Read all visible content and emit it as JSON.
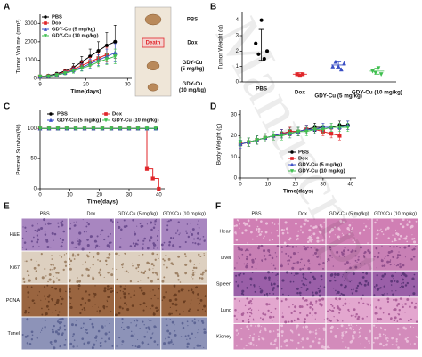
{
  "panel_labels": [
    "A",
    "B",
    "C",
    "D",
    "E",
    "F"
  ],
  "chart_data": [
    {
      "type": "line",
      "ylabel": "Tumor Volume (mm³)",
      "xlabel": "Time(days)",
      "x": [
        9,
        11,
        13,
        15,
        17,
        19,
        21,
        23,
        25,
        27
      ],
      "xlim": [
        9,
        31
      ],
      "xticks": [
        9,
        20,
        30
      ],
      "ylim": [
        0,
        3500
      ],
      "yticks": [
        0,
        1000,
        2000,
        3000
      ],
      "legend": "upper left",
      "series": [
        {
          "name": "PBS",
          "color": "#000000",
          "marker": "circle",
          "values": [
            100,
            150,
            250,
            400,
            600,
            900,
            1200,
            1500,
            1800,
            2000
          ],
          "errors": [
            30,
            50,
            80,
            120,
            200,
            300,
            400,
            500,
            700,
            900
          ]
        },
        {
          "name": "Dox",
          "color": "#e0262a",
          "marker": "square",
          "values": [
            100,
            130,
            200,
            350,
            500,
            700,
            900,
            1100,
            1300,
            null
          ],
          "errors": [
            30,
            40,
            60,
            100,
            150,
            200,
            250,
            300,
            400,
            null
          ]
        },
        {
          "name": "GDY-Cu (5 mg/kg)",
          "color": "#3a4fc4",
          "marker": "triangle",
          "values": [
            100,
            120,
            200,
            300,
            450,
            600,
            800,
            1000,
            1200,
            1400
          ],
          "errors": [
            30,
            40,
            60,
            90,
            130,
            180,
            250,
            300,
            400,
            500
          ]
        },
        {
          "name": "GDY-Cu (10 mg/kg)",
          "color": "#3fbf4f",
          "marker": "triangle-down",
          "values": [
            100,
            110,
            180,
            280,
            400,
            550,
            700,
            900,
            1050,
            1200
          ],
          "errors": [
            30,
            40,
            60,
            90,
            120,
            160,
            200,
            260,
            300,
            400
          ]
        }
      ]
    },
    {
      "type": "dot",
      "ylabel": "Tumor Weight (g)",
      "categories": [
        "PBS",
        "Dox",
        "GDY-Cu (5 mg/kg)",
        "GDY-Cu (10 mg/kg)"
      ],
      "colors": [
        "#000000",
        "#e0262a",
        "#3a4fc4",
        "#3fbf4f"
      ],
      "markers": [
        "circle",
        "square",
        "triangle",
        "triangle-down"
      ],
      "points": [
        [
          2.5,
          1.8,
          4.0,
          1.5,
          2.0
        ],
        [
          0.5,
          0.4,
          0.5
        ],
        [
          1.0,
          1.3,
          1.0,
          0.8,
          1.2
        ],
        [
          0.7,
          0.6,
          0.9,
          0.5
        ]
      ],
      "means": [
        2.4,
        0.5,
        1.1,
        0.7
      ],
      "errors": [
        1.0,
        0.1,
        0.2,
        0.2
      ],
      "ylim": [
        0,
        4.5
      ],
      "yticks": [
        0,
        1,
        2,
        3,
        4
      ]
    },
    {
      "type": "line",
      "step": true,
      "ylabel": "Percent Survival(%)",
      "xlabel": "Time(days)",
      "xlim": [
        0,
        42
      ],
      "xticks": [
        0,
        10,
        20,
        30,
        40
      ],
      "ylim": [
        0,
        130
      ],
      "yticks": [
        0,
        50,
        100
      ],
      "legend": "upper",
      "series": [
        {
          "name": "PBS",
          "color": "#000000",
          "marker": "circle",
          "x": [
            0,
            3,
            6,
            9,
            12,
            15,
            18,
            21,
            24,
            27,
            30,
            33,
            36,
            39
          ],
          "values": [
            100,
            100,
            100,
            100,
            100,
            100,
            100,
            100,
            100,
            100,
            100,
            100,
            100,
            100
          ]
        },
        {
          "name": "Dox",
          "color": "#e0262a",
          "marker": "square",
          "x": [
            0,
            3,
            6,
            9,
            12,
            15,
            18,
            21,
            24,
            27,
            30,
            33,
            36,
            38,
            40
          ],
          "values": [
            100,
            100,
            100,
            100,
            100,
            100,
            100,
            100,
            100,
            100,
            100,
            100,
            33,
            17,
            0
          ]
        },
        {
          "name": "GDY-Cu (5 mg/kg)",
          "color": "#3a4fc4",
          "marker": "triangle",
          "x": [
            0,
            3,
            6,
            9,
            12,
            15,
            18,
            21,
            24,
            27,
            30,
            33,
            36,
            39
          ],
          "values": [
            100,
            100,
            100,
            100,
            100,
            100,
            100,
            100,
            100,
            100,
            100,
            100,
            100,
            100
          ]
        },
        {
          "name": "GDY-Cu (10 mg/kg)",
          "color": "#3fbf4f",
          "marker": "triangle-down",
          "x": [
            0,
            3,
            6,
            9,
            12,
            15,
            18,
            21,
            24,
            27,
            30,
            33,
            36,
            39
          ],
          "values": [
            100,
            100,
            100,
            100,
            100,
            100,
            100,
            100,
            100,
            100,
            100,
            100,
            100,
            100
          ]
        }
      ]
    },
    {
      "type": "line",
      "ylabel": "Body Weight (g)",
      "xlabel": "Time(days)",
      "x": [
        0,
        3,
        6,
        9,
        12,
        15,
        18,
        21,
        24,
        27,
        30,
        33,
        36,
        39
      ],
      "xlim": [
        0,
        42
      ],
      "xticks": [
        0,
        10,
        20,
        30,
        40
      ],
      "ylim": [
        0,
        32
      ],
      "yticks": [
        0,
        10,
        20,
        30
      ],
      "legend": "lower right",
      "series": [
        {
          "name": "PBS",
          "color": "#000000",
          "marker": "circle",
          "values": [
            16,
            17,
            18,
            19,
            20,
            21,
            22,
            22,
            23,
            24,
            24,
            24,
            25,
            25
          ],
          "errors": [
            2,
            2,
            2,
            2,
            2,
            2,
            2,
            2,
            2,
            2,
            2,
            2,
            2,
            2
          ]
        },
        {
          "name": "Dox",
          "color": "#e0262a",
          "marker": "square",
          "values": [
            16,
            17,
            18,
            19,
            20,
            21,
            22,
            22,
            23,
            23,
            22,
            21,
            20,
            null
          ],
          "errors": [
            2,
            2,
            2,
            2,
            2,
            2,
            2,
            2,
            2,
            2,
            2,
            2,
            2,
            null
          ]
        },
        {
          "name": "GDY-Cu (5 mg/kg)",
          "color": "#3a4fc4",
          "marker": "triangle",
          "values": [
            16,
            17,
            18,
            19,
            20,
            21,
            21,
            22,
            23,
            23,
            24,
            24,
            24,
            25
          ],
          "errors": [
            2,
            2,
            2,
            2,
            2,
            2,
            2,
            2,
            2,
            2,
            2,
            2,
            2,
            2
          ]
        },
        {
          "name": "GDY-Cu (10 mg/kg)",
          "color": "#3fbf4f",
          "marker": "triangle-down",
          "values": [
            17,
            17,
            18,
            19,
            20,
            20,
            21,
            22,
            22,
            23,
            23,
            24,
            24,
            24
          ],
          "errors": [
            2,
            2,
            2,
            2,
            2,
            2,
            2,
            2,
            2,
            2,
            2,
            2,
            2,
            2
          ]
        }
      ]
    }
  ],
  "tumor_photo": {
    "death_label": "Death",
    "labels": [
      [
        "PBS"
      ],
      [
        "Dox"
      ],
      [
        "GDY-Cu",
        "(5 mg/kg)"
      ],
      [
        "GDY-Cu",
        "(10 mg/kg)"
      ]
    ]
  },
  "histology_e": {
    "columns": [
      "PBS",
      "Dox",
      "GDY-Cu (5 mg/kg)",
      "GDY-Cu (10 mg/kg)"
    ],
    "rows": [
      "H&E",
      "Ki67",
      "PCNA",
      "Tunel"
    ]
  },
  "histology_f": {
    "columns": [
      "PBS",
      "Dox",
      "GDY-Cu (5 mg/kg)",
      "GDY-Cu (10 mg/kg)"
    ],
    "rows": [
      "Heart",
      "Liver",
      "Spleen",
      "Lung",
      "Kidney"
    ]
  },
  "watermark": "Manuscript"
}
